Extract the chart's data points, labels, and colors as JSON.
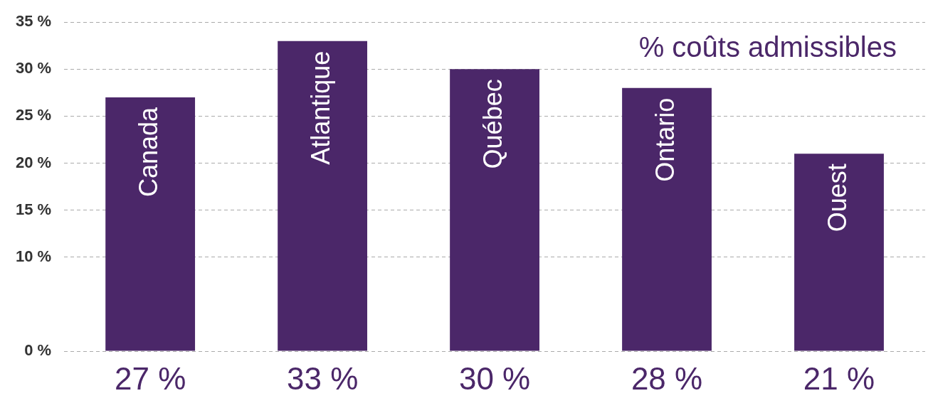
{
  "chart_data": {
    "type": "bar",
    "title": "% coûts admissibles",
    "categories": [
      "Canada",
      "Atlantique",
      "Québec",
      "Ontario",
      "Ouest"
    ],
    "values": [
      27,
      33,
      30,
      28,
      21
    ],
    "value_labels": [
      "27 %",
      "33 %",
      "30 %",
      "28 %",
      "21 %"
    ],
    "color": "#4b2769",
    "ylim": [
      0,
      35
    ],
    "yticks": [
      {
        "value": 0,
        "label": "0 %"
      },
      {
        "value": 10,
        "label": "10 %"
      },
      {
        "value": 15,
        "label": "15 %"
      },
      {
        "value": 20,
        "label": "20 %"
      },
      {
        "value": 25,
        "label": "25 %"
      },
      {
        "value": 30,
        "label": "30 %"
      },
      {
        "value": 35,
        "label": "35 %"
      }
    ],
    "grid": "y",
    "legend": false
  }
}
